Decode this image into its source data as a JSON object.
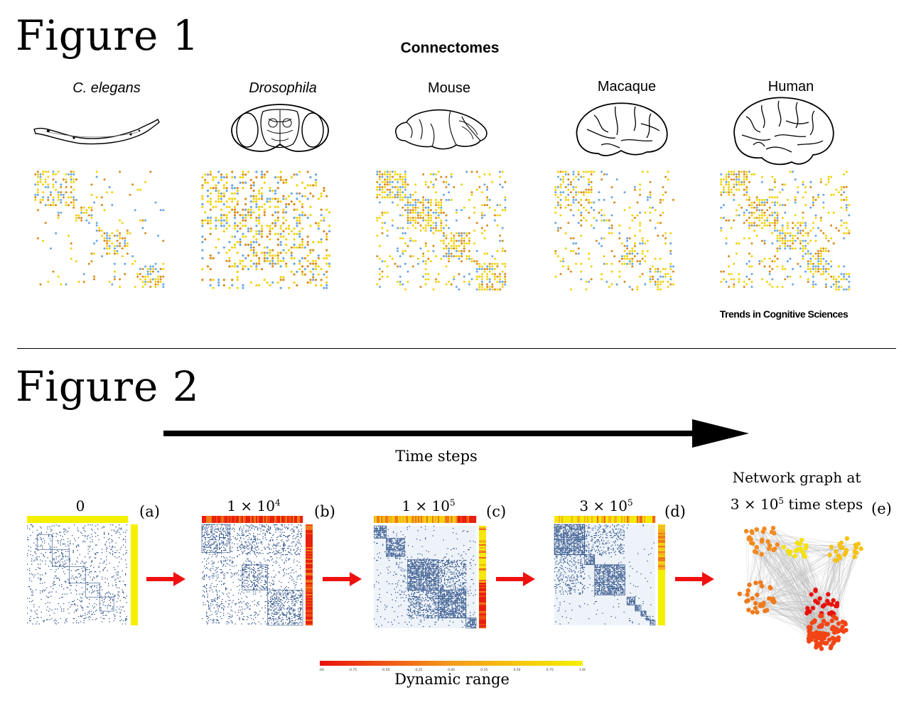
{
  "figure1": {
    "title": "Figure 1",
    "heading": "Connectomes",
    "species": [
      {
        "label": "C. elegans",
        "italic": true
      },
      {
        "label": "Drosophila",
        "italic": true
      },
      {
        "label": "Mouse",
        "italic": false
      },
      {
        "label": "Macaque",
        "italic": false
      },
      {
        "label": "Human",
        "italic": false
      }
    ],
    "credit": "Trends in Cognitive Sciences"
  },
  "figure2": {
    "title": "Figure 2",
    "arrow_label": "Time steps",
    "panels": [
      {
        "step": "0",
        "tag": "(a)"
      },
      {
        "step_base": "1 × 10",
        "step_exp": "4",
        "tag": "(b)"
      },
      {
        "step_base": "1 × 10",
        "step_exp": "5",
        "tag": "(c)"
      },
      {
        "step_base": "3 × 10",
        "step_exp": "5",
        "tag": "(d)"
      }
    ],
    "graph": {
      "line1": "Network graph at",
      "line2_base": "3 × 10",
      "line2_exp": "5",
      "line2_rest": " time steps",
      "tag": "(e)"
    },
    "colorbar": {
      "label": "Dynamic range",
      "ticks": [
        "-1.00",
        "-0.75",
        "-0.50",
        "-0.25",
        "0.00",
        "0.25",
        "0.50",
        "0.75",
        "1.00"
      ],
      "colors": {
        "low": "#e8100e",
        "mid": "#f59a1a",
        "high": "#f5f000"
      }
    }
  },
  "colors": {
    "matrix_blue": "#2b4f86",
    "matrix_bg": "#eef3fa",
    "dot_yellow": "#f2d20e",
    "dot_orange": "#d9891c",
    "dot_blue": "#6aa6e0",
    "arrow_red": "#f01010"
  }
}
